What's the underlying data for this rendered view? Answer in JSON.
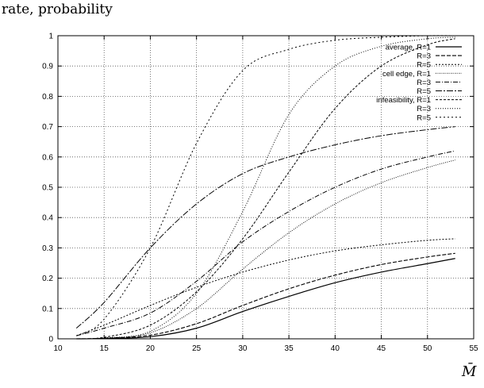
{
  "chart_data": {
    "type": "line",
    "ylabel": "rate, probability",
    "xlabel": "M̄",
    "xlim": [
      10,
      55
    ],
    "ylim": [
      0,
      1
    ],
    "xticks": [
      10,
      15,
      20,
      25,
      30,
      35,
      40,
      45,
      50,
      55
    ],
    "yticks": [
      0,
      0.1,
      0.2,
      0.3,
      0.4,
      0.5,
      0.6,
      0.7,
      0.8,
      0.9,
      1
    ],
    "grid": true,
    "legend_position": "top-right",
    "x": [
      12,
      15,
      20,
      25,
      30,
      35,
      40,
      45,
      50,
      53
    ],
    "series": [
      {
        "name": "average, R=1",
        "values": [
          0,
          0.001,
          0.007,
          0.035,
          0.09,
          0.14,
          0.185,
          0.22,
          0.248,
          0.265
        ]
      },
      {
        "name": "R=3",
        "values": [
          0,
          0.002,
          0.012,
          0.05,
          0.11,
          0.165,
          0.21,
          0.245,
          0.27,
          0.282
        ]
      },
      {
        "name": "R=5",
        "values": [
          0.01,
          0.045,
          0.11,
          0.17,
          0.22,
          0.26,
          0.29,
          0.31,
          0.325,
          0.33
        ]
      },
      {
        "name": "cell edge, R=1",
        "values": [
          0,
          0.002,
          0.02,
          0.1,
          0.23,
          0.35,
          0.445,
          0.515,
          0.565,
          0.59
        ]
      },
      {
        "name": "R=3",
        "values": [
          0.01,
          0.035,
          0.085,
          0.19,
          0.32,
          0.42,
          0.5,
          0.56,
          0.6,
          0.62
        ]
      },
      {
        "name": "R=5",
        "values": [
          0.035,
          0.12,
          0.3,
          0.445,
          0.545,
          0.6,
          0.64,
          0.67,
          0.69,
          0.7
        ]
      },
      {
        "name": "infeasibility, R=1",
        "values": [
          0,
          0.005,
          0.045,
          0.155,
          0.33,
          0.55,
          0.76,
          0.9,
          0.97,
          0.99
        ]
      },
      {
        "name": "R=3",
        "values": [
          0,
          0.003,
          0.025,
          0.15,
          0.42,
          0.74,
          0.9,
          0.965,
          0.99,
          0.995
        ]
      },
      {
        "name": "R=5",
        "values": [
          0.01,
          0.065,
          0.3,
          0.645,
          0.885,
          0.955,
          0.985,
          0.995,
          1.0,
          1.0
        ]
      }
    ]
  },
  "colors": {
    "line": "#000000",
    "grid": "#555555"
  }
}
